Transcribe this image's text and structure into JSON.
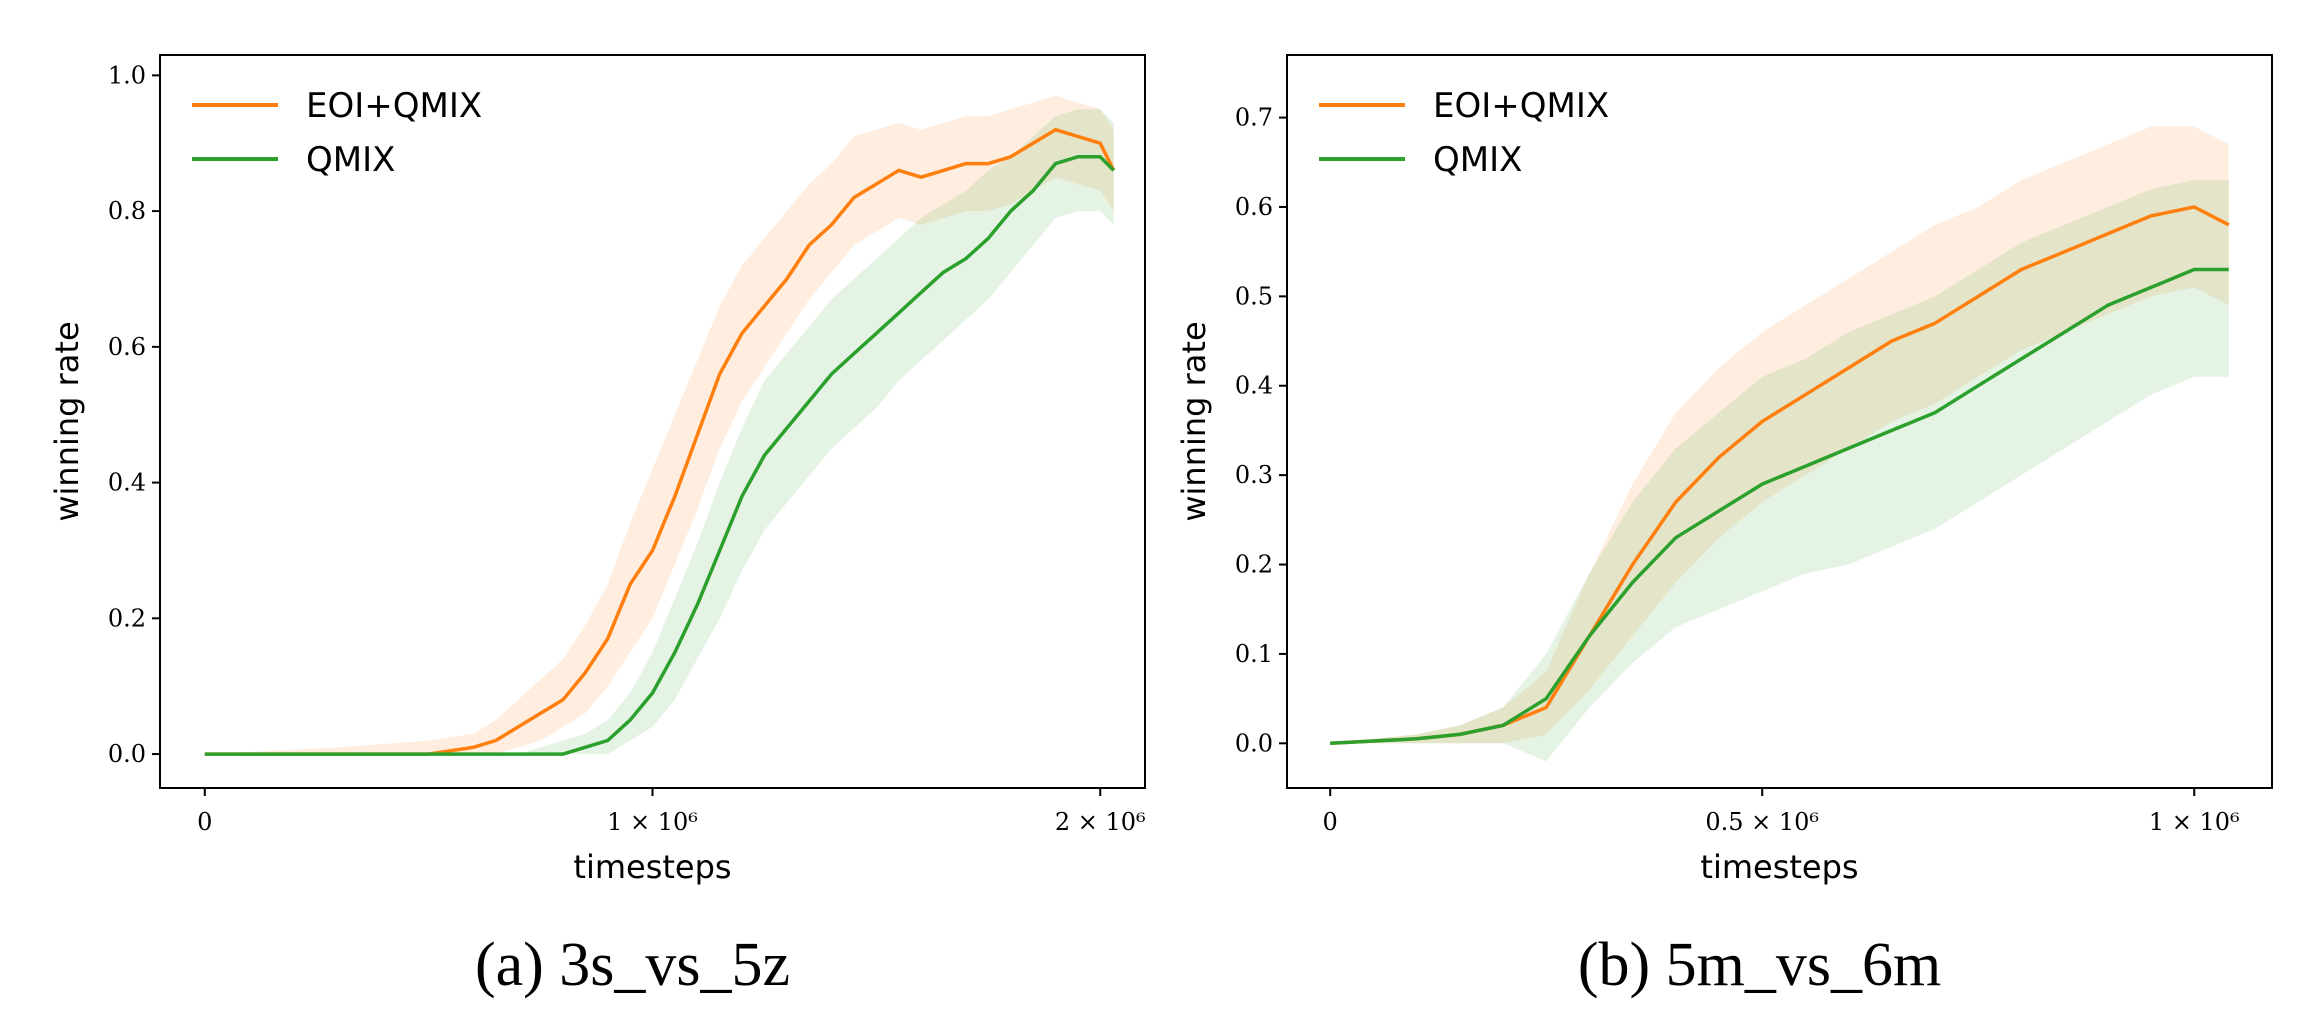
{
  "colors": {
    "eoi": "#ff7f0e",
    "qmix": "#2ca02c"
  },
  "chart_data": [
    {
      "type": "line",
      "caption": "(a) 3s_vs_5z",
      "xlabel": "timesteps",
      "ylabel": "winning rate",
      "xlim": [
        -100000,
        2100000
      ],
      "ylim": [
        -0.05,
        1.03
      ],
      "xticks": [
        {
          "value": 0,
          "label": "0"
        },
        {
          "value": 1000000,
          "label": "1 × 10⁶"
        },
        {
          "value": 2000000,
          "label": "2 × 10⁶"
        }
      ],
      "yticks": [
        {
          "value": 0.0,
          "label": "0.0"
        },
        {
          "value": 0.2,
          "label": "0.2"
        },
        {
          "value": 0.4,
          "label": "0.4"
        },
        {
          "value": 0.6,
          "label": "0.6"
        },
        {
          "value": 0.8,
          "label": "0.8"
        },
        {
          "value": 1.0,
          "label": "1.0"
        }
      ],
      "grid": false,
      "legend": "top-left",
      "series": [
        {
          "name": "EOI+QMIX",
          "x": [
            0,
            300000,
            500000,
            600000,
            650000,
            700000,
            750000,
            800000,
            850000,
            900000,
            950000,
            1000000,
            1050000,
            1100000,
            1150000,
            1200000,
            1250000,
            1300000,
            1350000,
            1400000,
            1450000,
            1500000,
            1550000,
            1600000,
            1650000,
            1700000,
            1750000,
            1800000,
            1850000,
            1900000,
            1950000,
            2000000,
            2030000
          ],
          "y": [
            0.0,
            0.0,
            0.0,
            0.01,
            0.02,
            0.04,
            0.06,
            0.08,
            0.12,
            0.17,
            0.25,
            0.3,
            0.38,
            0.47,
            0.56,
            0.62,
            0.66,
            0.7,
            0.75,
            0.78,
            0.82,
            0.84,
            0.86,
            0.85,
            0.86,
            0.87,
            0.87,
            0.88,
            0.9,
            0.92,
            0.91,
            0.9,
            0.86
          ],
          "lower": [
            0.0,
            0.0,
            0.0,
            0.0,
            0.0,
            0.01,
            0.02,
            0.04,
            0.06,
            0.1,
            0.15,
            0.2,
            0.28,
            0.36,
            0.45,
            0.52,
            0.57,
            0.62,
            0.67,
            0.71,
            0.75,
            0.77,
            0.79,
            0.78,
            0.79,
            0.8,
            0.8,
            0.81,
            0.83,
            0.85,
            0.84,
            0.83,
            0.8
          ],
          "upper": [
            0.0,
            0.01,
            0.02,
            0.03,
            0.05,
            0.08,
            0.11,
            0.14,
            0.19,
            0.25,
            0.34,
            0.42,
            0.5,
            0.58,
            0.66,
            0.72,
            0.76,
            0.8,
            0.84,
            0.87,
            0.91,
            0.92,
            0.93,
            0.92,
            0.93,
            0.94,
            0.94,
            0.95,
            0.96,
            0.97,
            0.96,
            0.95,
            0.92
          ]
        },
        {
          "name": "QMIX",
          "x": [
            0,
            700000,
            800000,
            850000,
            900000,
            950000,
            1000000,
            1050000,
            1100000,
            1150000,
            1200000,
            1250000,
            1300000,
            1350000,
            1400000,
            1450000,
            1500000,
            1550000,
            1600000,
            1650000,
            1700000,
            1750000,
            1800000,
            1850000,
            1900000,
            1950000,
            2000000,
            2030000
          ],
          "y": [
            0.0,
            0.0,
            0.0,
            0.01,
            0.02,
            0.05,
            0.09,
            0.15,
            0.22,
            0.3,
            0.38,
            0.44,
            0.48,
            0.52,
            0.56,
            0.59,
            0.62,
            0.65,
            0.68,
            0.71,
            0.73,
            0.76,
            0.8,
            0.83,
            0.87,
            0.88,
            0.88,
            0.86
          ],
          "lower": [
            0.0,
            0.0,
            0.0,
            0.0,
            0.0,
            0.02,
            0.04,
            0.08,
            0.14,
            0.2,
            0.27,
            0.33,
            0.37,
            0.41,
            0.45,
            0.48,
            0.51,
            0.55,
            0.58,
            0.61,
            0.64,
            0.67,
            0.71,
            0.75,
            0.79,
            0.8,
            0.8,
            0.78
          ],
          "upper": [
            0.0,
            0.0,
            0.02,
            0.03,
            0.05,
            0.09,
            0.15,
            0.23,
            0.31,
            0.4,
            0.48,
            0.55,
            0.59,
            0.63,
            0.67,
            0.7,
            0.73,
            0.76,
            0.79,
            0.81,
            0.83,
            0.86,
            0.88,
            0.91,
            0.94,
            0.95,
            0.95,
            0.93
          ]
        }
      ]
    },
    {
      "type": "line",
      "caption": "(b) 5m_vs_6m",
      "xlabel": "timesteps",
      "ylabel": "winning rate",
      "xlim": [
        -50000,
        1090000
      ],
      "ylim": [
        -0.05,
        0.77
      ],
      "xticks": [
        {
          "value": 0,
          "label": "0"
        },
        {
          "value": 500000,
          "label": "0.5 × 10⁶"
        },
        {
          "value": 1000000,
          "label": "1 × 10⁶"
        }
      ],
      "yticks": [
        {
          "value": 0.0,
          "label": "0.0"
        },
        {
          "value": 0.1,
          "label": "0.1"
        },
        {
          "value": 0.2,
          "label": "0.2"
        },
        {
          "value": 0.3,
          "label": "0.3"
        },
        {
          "value": 0.4,
          "label": "0.4"
        },
        {
          "value": 0.5,
          "label": "0.5"
        },
        {
          "value": 0.6,
          "label": "0.6"
        },
        {
          "value": 0.7,
          "label": "0.7"
        }
      ],
      "grid": false,
      "legend": "top-left",
      "series": [
        {
          "name": "EOI+QMIX",
          "x": [
            0,
            100000,
            150000,
            200000,
            250000,
            300000,
            350000,
            400000,
            450000,
            500000,
            550000,
            600000,
            650000,
            700000,
            750000,
            800000,
            850000,
            900000,
            950000,
            1000000,
            1040000
          ],
          "y": [
            0.0,
            0.005,
            0.01,
            0.02,
            0.04,
            0.12,
            0.2,
            0.27,
            0.32,
            0.36,
            0.39,
            0.42,
            0.45,
            0.47,
            0.5,
            0.53,
            0.55,
            0.57,
            0.59,
            0.6,
            0.58
          ],
          "lower": [
            0.0,
            0.0,
            0.0,
            0.0,
            0.01,
            0.06,
            0.12,
            0.18,
            0.23,
            0.27,
            0.3,
            0.33,
            0.36,
            0.38,
            0.41,
            0.44,
            0.46,
            0.48,
            0.5,
            0.51,
            0.49
          ],
          "upper": [
            0.0,
            0.01,
            0.02,
            0.04,
            0.08,
            0.19,
            0.29,
            0.37,
            0.42,
            0.46,
            0.49,
            0.52,
            0.55,
            0.58,
            0.6,
            0.63,
            0.65,
            0.67,
            0.69,
            0.69,
            0.67
          ]
        },
        {
          "name": "QMIX",
          "x": [
            0,
            100000,
            150000,
            200000,
            250000,
            300000,
            350000,
            400000,
            450000,
            500000,
            550000,
            600000,
            650000,
            700000,
            750000,
            800000,
            850000,
            900000,
            950000,
            1000000,
            1040000
          ],
          "y": [
            0.0,
            0.005,
            0.01,
            0.02,
            0.05,
            0.12,
            0.18,
            0.23,
            0.26,
            0.29,
            0.31,
            0.33,
            0.35,
            0.37,
            0.4,
            0.43,
            0.46,
            0.49,
            0.51,
            0.53,
            0.53
          ],
          "lower": [
            0.0,
            0.0,
            0.0,
            0.0,
            -0.02,
            0.04,
            0.09,
            0.13,
            0.15,
            0.17,
            0.19,
            0.2,
            0.22,
            0.24,
            0.27,
            0.3,
            0.33,
            0.36,
            0.39,
            0.41,
            0.41
          ],
          "upper": [
            0.0,
            0.01,
            0.02,
            0.04,
            0.1,
            0.19,
            0.27,
            0.33,
            0.37,
            0.41,
            0.43,
            0.46,
            0.48,
            0.5,
            0.53,
            0.56,
            0.58,
            0.6,
            0.62,
            0.63,
            0.63
          ]
        }
      ]
    }
  ]
}
